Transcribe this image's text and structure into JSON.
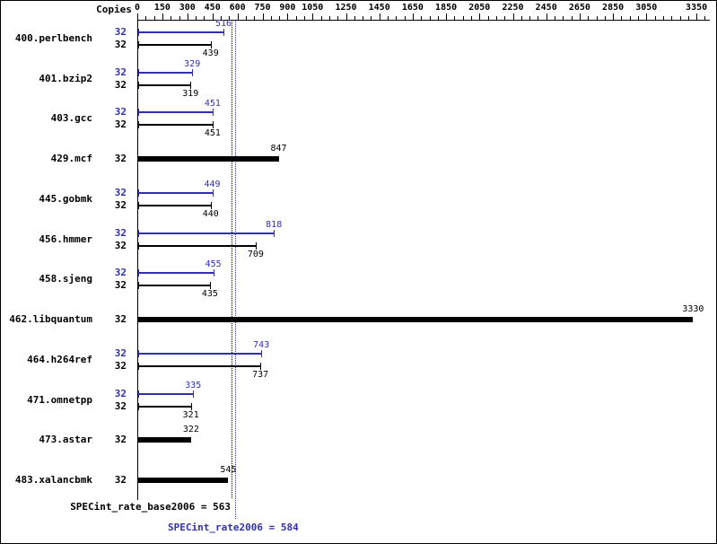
{
  "chart_data": {
    "type": "bar",
    "orientation": "horizontal",
    "copies_header": "Copies",
    "xlim": [
      0,
      3430
    ],
    "x_ticks": [
      0,
      150,
      300,
      450,
      600,
      750,
      900,
      1050,
      1250,
      1450,
      1650,
      1850,
      2050,
      2250,
      2450,
      2650,
      2850,
      3050,
      3350
    ],
    "minor_tick_step": 50,
    "legend_position": "none",
    "grid": false,
    "benchmarks": [
      {
        "name": "400.perlbench",
        "bars": [
          {
            "kind": "peak",
            "copies": "32",
            "value": 516
          },
          {
            "kind": "base",
            "copies": "32",
            "value": 439
          }
        ]
      },
      {
        "name": "401.bzip2",
        "bars": [
          {
            "kind": "peak",
            "copies": "32",
            "value": 329
          },
          {
            "kind": "base",
            "copies": "32",
            "value": 319
          }
        ]
      },
      {
        "name": "403.gcc",
        "bars": [
          {
            "kind": "peak",
            "copies": "32",
            "value": 451
          },
          {
            "kind": "base",
            "copies": "32",
            "value": 451
          }
        ]
      },
      {
        "name": "429.mcf",
        "bars": [
          {
            "kind": "base-only",
            "copies": "32",
            "value": 847
          }
        ]
      },
      {
        "name": "445.gobmk",
        "bars": [
          {
            "kind": "peak",
            "copies": "32",
            "value": 449
          },
          {
            "kind": "base",
            "copies": "32",
            "value": 440
          }
        ]
      },
      {
        "name": "456.hmmer",
        "bars": [
          {
            "kind": "peak",
            "copies": "32",
            "value": 818
          },
          {
            "kind": "base",
            "copies": "32",
            "value": 709
          }
        ]
      },
      {
        "name": "458.sjeng",
        "bars": [
          {
            "kind": "peak",
            "copies": "32",
            "value": 455
          },
          {
            "kind": "base",
            "copies": "32",
            "value": 435
          }
        ]
      },
      {
        "name": "462.libquantum",
        "bars": [
          {
            "kind": "base-only",
            "copies": "32",
            "value": 3330
          }
        ]
      },
      {
        "name": "464.h264ref",
        "bars": [
          {
            "kind": "peak",
            "copies": "32",
            "value": 743
          },
          {
            "kind": "base",
            "copies": "32",
            "value": 737
          }
        ]
      },
      {
        "name": "471.omnetpp",
        "bars": [
          {
            "kind": "peak",
            "copies": "32",
            "value": 335
          },
          {
            "kind": "base",
            "copies": "32",
            "value": 321
          }
        ]
      },
      {
        "name": "473.astar",
        "bars": [
          {
            "kind": "base-only",
            "copies": "32",
            "value": 322
          }
        ]
      },
      {
        "name": "483.xalancbmk",
        "bars": [
          {
            "kind": "base-only",
            "copies": "32",
            "value": 545
          }
        ]
      }
    ],
    "summary": {
      "base_text": "SPECint_rate_base2006 = 563",
      "base_value": 563,
      "peak_text": "SPECint_rate2006 = 584",
      "peak_value": 584
    },
    "colors": {
      "peak": "#3030b0",
      "base": "#000000"
    }
  }
}
